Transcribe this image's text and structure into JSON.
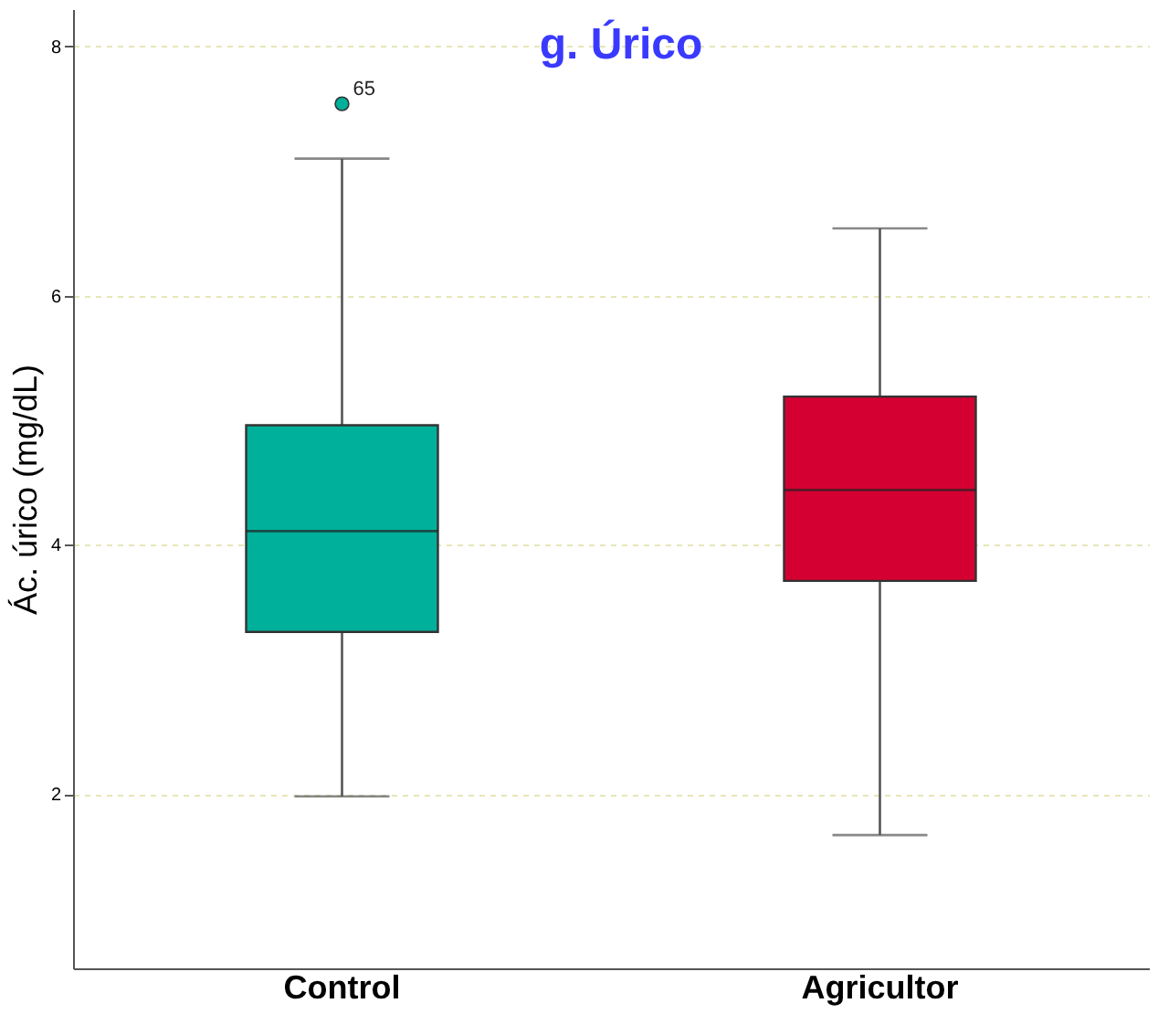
{
  "chart_data": {
    "type": "box",
    "title": "g. Úrico",
    "ylabel": "Ác. úrico (mg/dL)",
    "categories": [
      "Control",
      "Agricultor"
    ],
    "boxes": [
      {
        "low": 1.98,
        "q1": 3.3,
        "median": 4.11,
        "q3": 4.96,
        "high": 7.1,
        "outliers": [
          7.54
        ]
      },
      {
        "low": 1.67,
        "q1": 3.71,
        "median": 4.44,
        "q3": 5.19,
        "high": 6.54
      }
    ],
    "colors": [
      "#00b09b",
      "#d50032"
    ],
    "ylim": [
      0.6,
      8.3
    ],
    "yticks": [
      2,
      4,
      6,
      8
    ],
    "grid": "y",
    "legend": false,
    "annotations": [
      "65"
    ]
  }
}
